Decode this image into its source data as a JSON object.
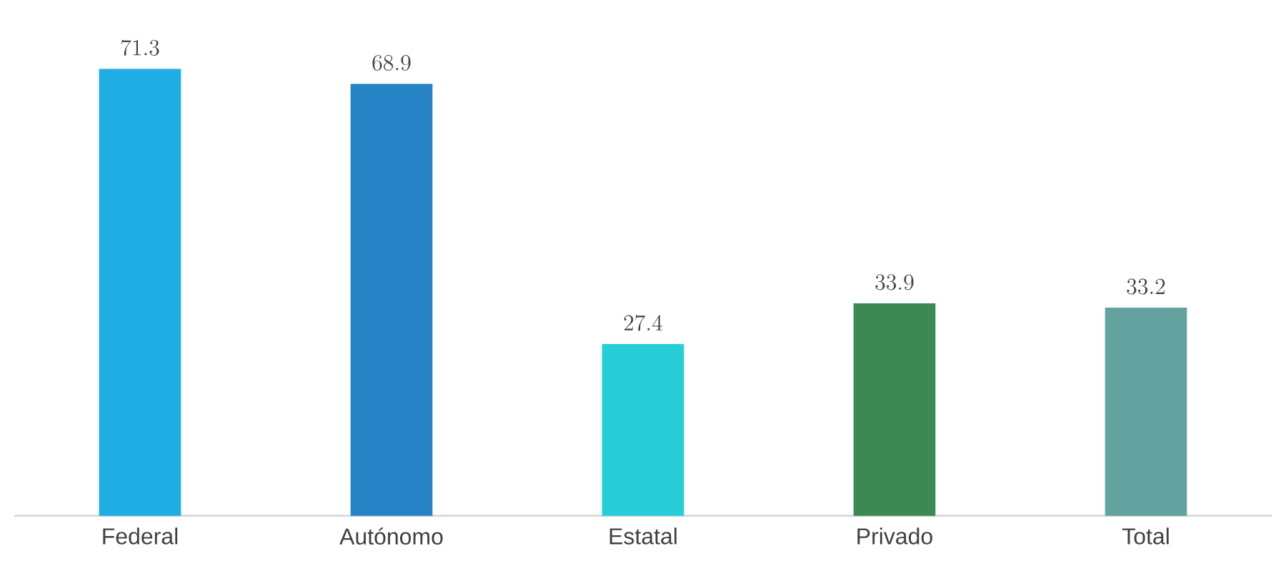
{
  "chart_data": {
    "type": "bar",
    "categories": [
      "Federal",
      "Autónomo",
      "Estatal",
      "Privado",
      "Total"
    ],
    "values": [
      71.3,
      68.9,
      27.4,
      33.9,
      33.2
    ],
    "colors": [
      "#1fade3",
      "#2683c6",
      "#27ced7",
      "#3e8853",
      "#62a39f"
    ],
    "data_labels": true
  }
}
